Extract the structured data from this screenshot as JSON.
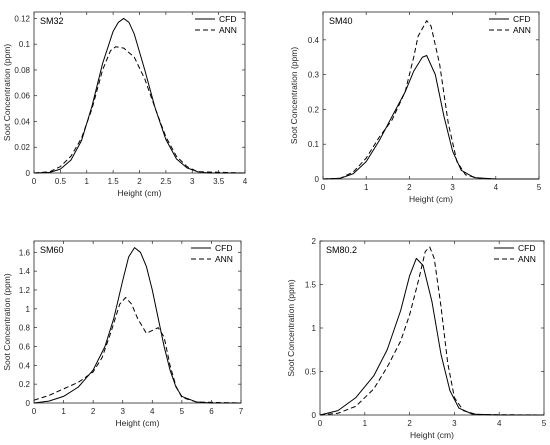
{
  "chart_data": [
    {
      "type": "line",
      "title": "SM32",
      "xlabel": "Height (cm)",
      "ylabel": "Soot Concentration (ppm)",
      "xlim": [
        0,
        4
      ],
      "ylim": [
        0,
        0.125
      ],
      "xticks": [
        0,
        0.5,
        1,
        1.5,
        2,
        2.5,
        3,
        3.5,
        4
      ],
      "xtick_labels": [
        "0",
        "0.5",
        "1",
        "1.5",
        "2",
        "2.5",
        "3",
        "3.5",
        "4"
      ],
      "yticks": [
        0,
        0.02,
        0.04,
        0.06,
        0.08,
        0.1,
        0.12
      ],
      "ytick_labels": [
        "0",
        "0.02",
        "0.04",
        "0.06",
        "0.08",
        "0.1",
        "0.12"
      ],
      "legend": "top-right",
      "grid": false,
      "series": [
        {
          "name": "CFD",
          "dash": "solid",
          "x": [
            0,
            0.3,
            0.5,
            0.7,
            0.9,
            1.1,
            1.3,
            1.5,
            1.6,
            1.7,
            1.8,
            1.9,
            2.1,
            2.3,
            2.5,
            2.7,
            2.9,
            3.1,
            3.3,
            4
          ],
          "y": [
            0,
            0.0005,
            0.003,
            0.01,
            0.025,
            0.052,
            0.085,
            0.11,
            0.117,
            0.12,
            0.117,
            0.108,
            0.08,
            0.05,
            0.026,
            0.011,
            0.004,
            0.001,
            0,
            0
          ]
        },
        {
          "name": "ANN",
          "dash": "dashed",
          "x": [
            0,
            0.3,
            0.5,
            0.7,
            0.9,
            1.1,
            1.3,
            1.45,
            1.55,
            1.7,
            1.9,
            2.1,
            2.3,
            2.5,
            2.7,
            2.9,
            3.1,
            4
          ],
          "y": [
            0,
            0.001,
            0.005,
            0.013,
            0.027,
            0.05,
            0.08,
            0.095,
            0.098,
            0.097,
            0.09,
            0.073,
            0.05,
            0.028,
            0.013,
            0.005,
            0.001,
            0
          ]
        }
      ]
    },
    {
      "type": "line",
      "title": "SM40",
      "xlabel": "Height (cm)",
      "ylabel": "Soot Concentration (ppm)",
      "xlim": [
        0,
        5
      ],
      "ylim": [
        0,
        0.48
      ],
      "xticks": [
        0,
        1,
        2,
        3,
        4,
        5
      ],
      "xtick_labels": [
        "0",
        "1",
        "2",
        "3",
        "4",
        "5"
      ],
      "yticks": [
        0,
        0.1,
        0.2,
        0.3,
        0.4
      ],
      "ytick_labels": [
        "0",
        "0.1",
        "0.2",
        "0.3",
        "0.4"
      ],
      "legend": "top-right",
      "grid": false,
      "series": [
        {
          "name": "CFD",
          "dash": "solid",
          "x": [
            0,
            0.4,
            0.7,
            1.0,
            1.3,
            1.6,
            1.9,
            2.1,
            2.3,
            2.4,
            2.6,
            2.8,
            3.0,
            3.2,
            3.5,
            4.0,
            5
          ],
          "y": [
            0,
            0.002,
            0.015,
            0.05,
            0.11,
            0.18,
            0.25,
            0.31,
            0.35,
            0.355,
            0.3,
            0.18,
            0.08,
            0.025,
            0.004,
            0,
            0
          ]
        },
        {
          "name": "ANN",
          "dash": "dashed",
          "x": [
            0,
            0.4,
            0.7,
            1.0,
            1.3,
            1.6,
            1.9,
            2.1,
            2.2,
            2.4,
            2.5,
            2.7,
            2.9,
            3.1,
            3.3,
            3.6,
            4.0,
            5
          ],
          "y": [
            0,
            0.002,
            0.02,
            0.06,
            0.12,
            0.17,
            0.25,
            0.35,
            0.41,
            0.455,
            0.44,
            0.33,
            0.16,
            0.05,
            0.012,
            0.002,
            0,
            0
          ]
        }
      ]
    },
    {
      "type": "line",
      "title": "SM60",
      "xlabel": "Height (cm)",
      "ylabel": "Soot Concentration (ppm)",
      "xlim": [
        0,
        7
      ],
      "ylim": [
        0,
        1.72
      ],
      "xticks": [
        0,
        1,
        2,
        3,
        4,
        5,
        6,
        7
      ],
      "xtick_labels": [
        "0",
        "1",
        "2",
        "3",
        "4",
        "5",
        "6",
        "7"
      ],
      "yticks": [
        0,
        0.2,
        0.4,
        0.6,
        0.8,
        1,
        1.2,
        1.4,
        1.6
      ],
      "ytick_labels": [
        "0",
        "0.2",
        "0.4",
        "0.6",
        "0.8",
        "1",
        "1.2",
        "1.4",
        "1.6"
      ],
      "legend": "top-right",
      "grid": false,
      "series": [
        {
          "name": "CFD",
          "dash": "solid",
          "x": [
            0,
            0.5,
            1.0,
            1.5,
            2.0,
            2.4,
            2.7,
            3.0,
            3.2,
            3.4,
            3.6,
            3.8,
            4.0,
            4.2,
            4.4,
            4.6,
            4.8,
            5.0,
            5.5,
            6.0,
            7
          ],
          "y": [
            0,
            0.02,
            0.07,
            0.17,
            0.35,
            0.6,
            0.9,
            1.3,
            1.55,
            1.65,
            1.6,
            1.45,
            1.2,
            0.9,
            0.6,
            0.35,
            0.17,
            0.07,
            0.01,
            0,
            0
          ]
        },
        {
          "name": "ANN",
          "dash": "dashed",
          "x": [
            0,
            0.5,
            1.0,
            1.5,
            2.0,
            2.3,
            2.6,
            2.9,
            3.1,
            3.3,
            3.5,
            3.8,
            4.0,
            4.2,
            4.4,
            4.6,
            4.8,
            5.0,
            5.5,
            7
          ],
          "y": [
            0.03,
            0.08,
            0.15,
            0.22,
            0.33,
            0.48,
            0.75,
            1.05,
            1.12,
            1.05,
            0.9,
            0.74,
            0.77,
            0.8,
            0.7,
            0.4,
            0.18,
            0.06,
            0.01,
            0
          ]
        }
      ]
    },
    {
      "type": "line",
      "title": "SM80.2",
      "xlabel": "Height (cm)",
      "ylabel": "Soot Concentration (ppm)",
      "xlim": [
        0,
        5
      ],
      "ylim": [
        0,
        2.0
      ],
      "xticks": [
        0,
        1,
        2,
        3,
        4,
        5
      ],
      "xtick_labels": [
        "0",
        "1",
        "2",
        "3",
        "4",
        "5"
      ],
      "yticks": [
        0,
        0.5,
        1,
        1.5,
        2
      ],
      "ytick_labels": [
        "0",
        "0.5",
        "1",
        "1.5",
        "2"
      ],
      "legend": "top-right",
      "grid": false,
      "series": [
        {
          "name": "CFD",
          "dash": "solid",
          "x": [
            0,
            0.4,
            0.8,
            1.2,
            1.5,
            1.8,
            2.0,
            2.15,
            2.3,
            2.5,
            2.7,
            2.9,
            3.1,
            3.4,
            4.0,
            5
          ],
          "y": [
            0,
            0.05,
            0.2,
            0.45,
            0.75,
            1.2,
            1.6,
            1.8,
            1.72,
            1.3,
            0.7,
            0.28,
            0.08,
            0.01,
            0,
            0
          ]
        },
        {
          "name": "ANN",
          "dash": "dashed",
          "x": [
            0,
            0.4,
            0.8,
            1.2,
            1.5,
            1.8,
            2.0,
            2.2,
            2.35,
            2.45,
            2.55,
            2.7,
            2.85,
            3.0,
            3.2,
            3.5,
            5
          ],
          "y": [
            0,
            0.02,
            0.1,
            0.3,
            0.55,
            0.85,
            1.15,
            1.55,
            1.88,
            1.93,
            1.8,
            1.25,
            0.6,
            0.2,
            0.05,
            0.005,
            0
          ]
        }
      ]
    }
  ]
}
